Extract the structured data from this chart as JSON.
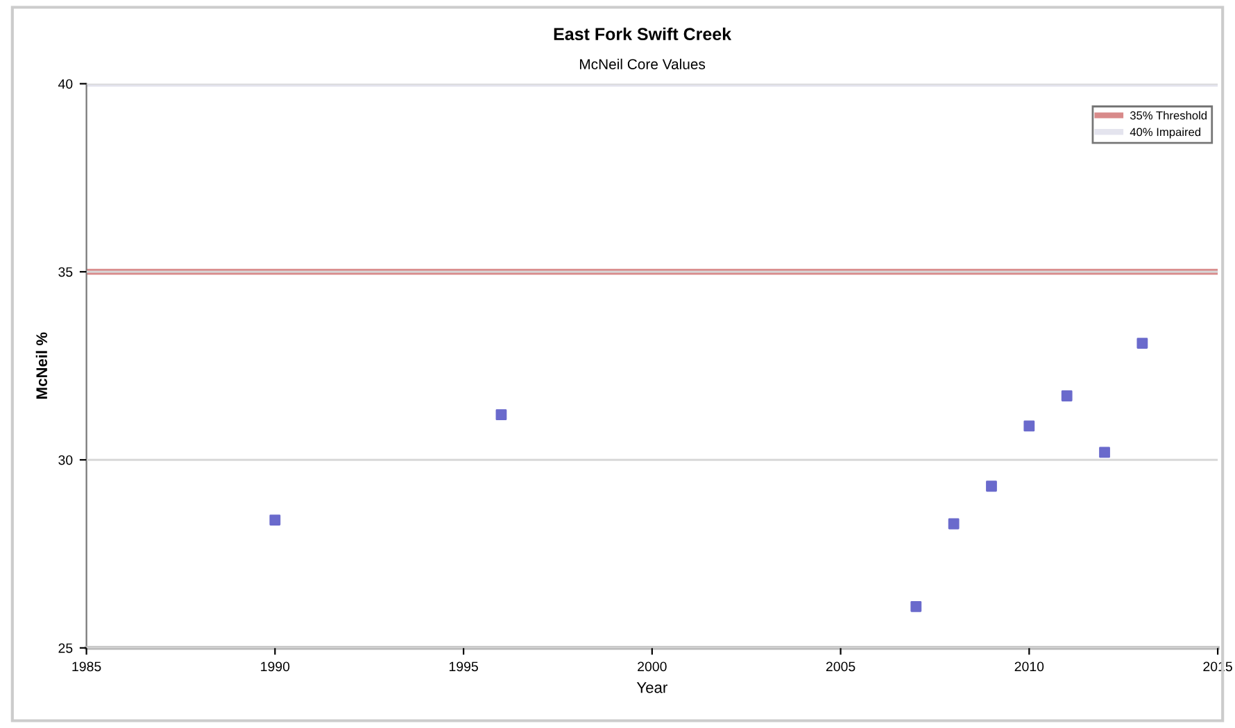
{
  "chart_data": {
    "type": "scatter",
    "title": "East Fork Swift Creek",
    "subtitle": "McNeil Core Values",
    "xlabel": "Year",
    "ylabel": "McNeil %",
    "x": [
      1990,
      1996,
      2007,
      2008,
      2009,
      2010,
      2011,
      2012,
      2013
    ],
    "series": [
      {
        "color": "#6a6acc",
        "values": [
          28.4,
          31.2,
          26.1,
          28.3,
          29.3,
          30.9,
          31.7,
          30.2,
          33.1
        ]
      }
    ],
    "xlim": [
      1985,
      2015
    ],
    "xticks": [
      1985,
      1990,
      1995,
      2000,
      2005,
      2010,
      2015
    ],
    "ylim": [
      25,
      40
    ],
    "yticks": [
      25,
      30,
      35,
      40
    ],
    "ref_lines": [
      {
        "axis": "y",
        "value": 35,
        "label": "35% Threshold",
        "color": "#d88a8a"
      },
      {
        "axis": "y",
        "value": 40,
        "label": "40% Impaired",
        "color": "#e4e4ee"
      }
    ],
    "grid": "y",
    "legend": "top right",
    "marker": "square"
  }
}
